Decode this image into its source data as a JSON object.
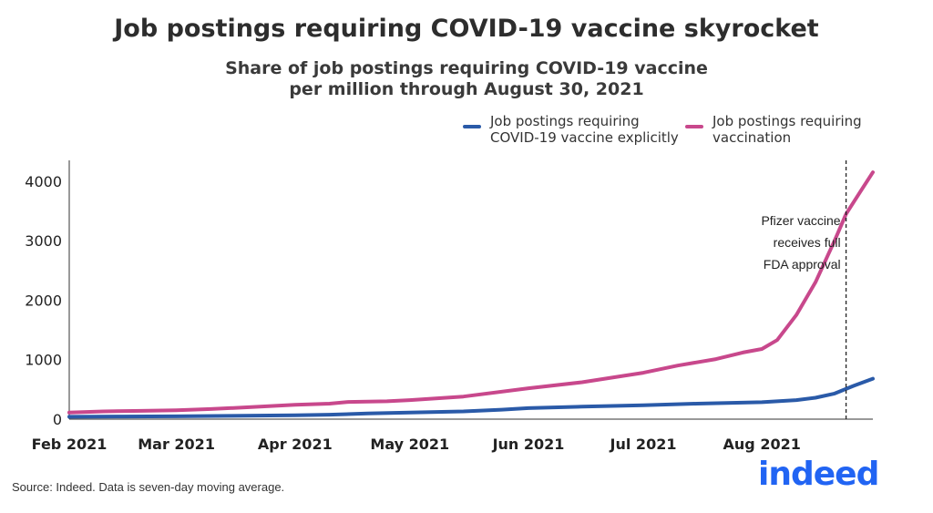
{
  "chart_data": {
    "type": "line",
    "title": "Job postings requiring COVID-19 vaccine skyrocket",
    "subtitle_line1": "Share of job postings requiring COVID-19 vaccine",
    "subtitle_line2": "per million through August 30, 2021",
    "xlabel": "",
    "ylabel": "",
    "ylim": [
      0,
      4350
    ],
    "yticks": [
      0,
      1000,
      2000,
      3000,
      4000
    ],
    "xlim": [
      "2021-02-01",
      "2021-08-30"
    ],
    "xticks": [
      {
        "date": "2021-02-01",
        "label": "Feb 2021"
      },
      {
        "date": "2021-03-01",
        "label": "Mar 2021"
      },
      {
        "date": "2021-04-01",
        "label": "Apr 2021"
      },
      {
        "date": "2021-05-01",
        "label": "May 2021"
      },
      {
        "date": "2021-06-01",
        "label": "Jun 2021"
      },
      {
        "date": "2021-07-01",
        "label": "Jul 2021"
      },
      {
        "date": "2021-08-01",
        "label": "Aug 2021"
      }
    ],
    "grid": false,
    "legend_position": "top-right",
    "series": [
      {
        "name": "Job postings requiring COVID-19 vaccine explicitly",
        "name_line1": "Job postings requiring",
        "name_line2": "COVID-19 vaccine explicitly",
        "color": "#2a5aa8",
        "points": [
          [
            "2021-02-01",
            40
          ],
          [
            "2021-02-15",
            45
          ],
          [
            "2021-03-01",
            48
          ],
          [
            "2021-03-15",
            55
          ],
          [
            "2021-04-01",
            65
          ],
          [
            "2021-04-10",
            75
          ],
          [
            "2021-04-20",
            95
          ],
          [
            "2021-05-01",
            110
          ],
          [
            "2021-05-15",
            130
          ],
          [
            "2021-05-25",
            160
          ],
          [
            "2021-06-01",
            185
          ],
          [
            "2021-06-15",
            210
          ],
          [
            "2021-07-01",
            235
          ],
          [
            "2021-07-15",
            260
          ],
          [
            "2021-08-01",
            285
          ],
          [
            "2021-08-10",
            320
          ],
          [
            "2021-08-15",
            360
          ],
          [
            "2021-08-20",
            430
          ],
          [
            "2021-08-25",
            560
          ],
          [
            "2021-08-30",
            680
          ]
        ]
      },
      {
        "name": "Job postings requiring vaccination",
        "name_line1": "Job postings requiring",
        "name_line2": "vaccination",
        "color": "#c8488c",
        "points": [
          [
            "2021-02-01",
            110
          ],
          [
            "2021-02-10",
            130
          ],
          [
            "2021-02-20",
            140
          ],
          [
            "2021-03-01",
            150
          ],
          [
            "2021-03-10",
            170
          ],
          [
            "2021-03-20",
            200
          ],
          [
            "2021-04-01",
            240
          ],
          [
            "2021-04-10",
            260
          ],
          [
            "2021-04-15",
            290
          ],
          [
            "2021-04-25",
            300
          ],
          [
            "2021-05-01",
            320
          ],
          [
            "2021-05-15",
            380
          ],
          [
            "2021-06-01",
            520
          ],
          [
            "2021-06-15",
            620
          ],
          [
            "2021-06-25",
            720
          ],
          [
            "2021-07-01",
            780
          ],
          [
            "2021-07-10",
            900
          ],
          [
            "2021-07-20",
            1010
          ],
          [
            "2021-07-27",
            1120
          ],
          [
            "2021-08-01",
            1180
          ],
          [
            "2021-08-05",
            1330
          ],
          [
            "2021-08-10",
            1750
          ],
          [
            "2021-08-15",
            2300
          ],
          [
            "2021-08-20",
            3000
          ],
          [
            "2021-08-23",
            3450
          ],
          [
            "2021-08-27",
            3850
          ],
          [
            "2021-08-30",
            4150
          ]
        ]
      }
    ],
    "annotations": [
      {
        "date": "2021-08-23",
        "style": "dashed vertical line",
        "lines": [
          "Pfizer vaccine",
          "receives full",
          "FDA approval"
        ]
      }
    ]
  },
  "footer": {
    "source": "Source: Indeed. Data is seven-day moving average.",
    "logo_text": "indeed",
    "logo_color": "#2164f3"
  }
}
